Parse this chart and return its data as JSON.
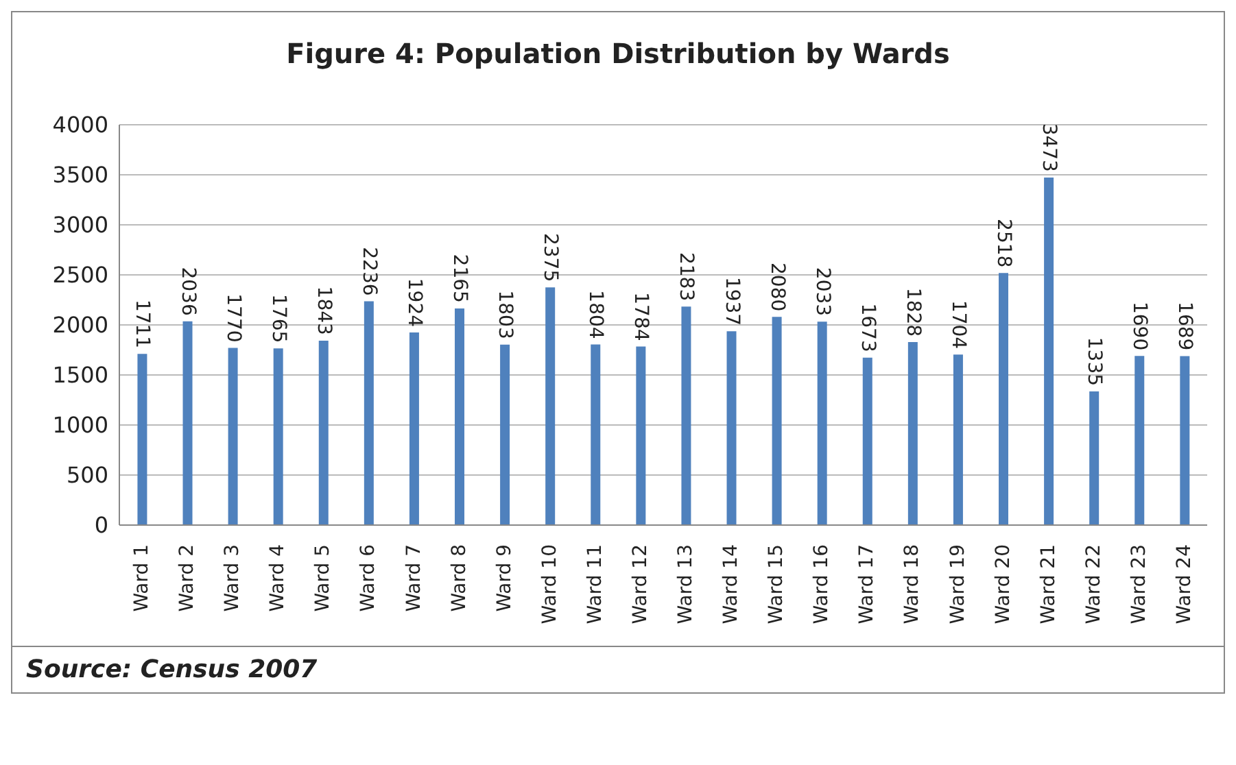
{
  "chart_data": {
    "type": "bar",
    "title": "Figure 4: Population Distribution by Wards",
    "categories": [
      "Ward 1",
      "Ward 2",
      "Ward 3",
      "Ward 4",
      "Ward 5",
      "Ward 6",
      "Ward 7",
      "Ward 8",
      "Ward 9",
      "Ward 10",
      "Ward 11",
      "Ward 12",
      "Ward 13",
      "Ward 14",
      "Ward 15",
      "Ward 16",
      "Ward 17",
      "Ward 18",
      "Ward 19",
      "Ward 20",
      "Ward 21",
      "Ward 22",
      "Ward 23",
      "Ward 24"
    ],
    "values": [
      1711,
      2036,
      1770,
      1765,
      1843,
      2236,
      1924,
      2165,
      1803,
      2375,
      1804,
      1784,
      2183,
      1937,
      2080,
      2033,
      1673,
      1828,
      1704,
      2518,
      3473,
      1335,
      1690,
      1689
    ],
    "color": "#4f81bd",
    "ylim": [
      0,
      4000
    ],
    "yticks": [
      0,
      500,
      1000,
      1500,
      2000,
      2500,
      3000,
      3500,
      4000
    ],
    "grid": "y",
    "data_labels": true,
    "annotations": [
      "Source: Census 2007"
    ]
  }
}
